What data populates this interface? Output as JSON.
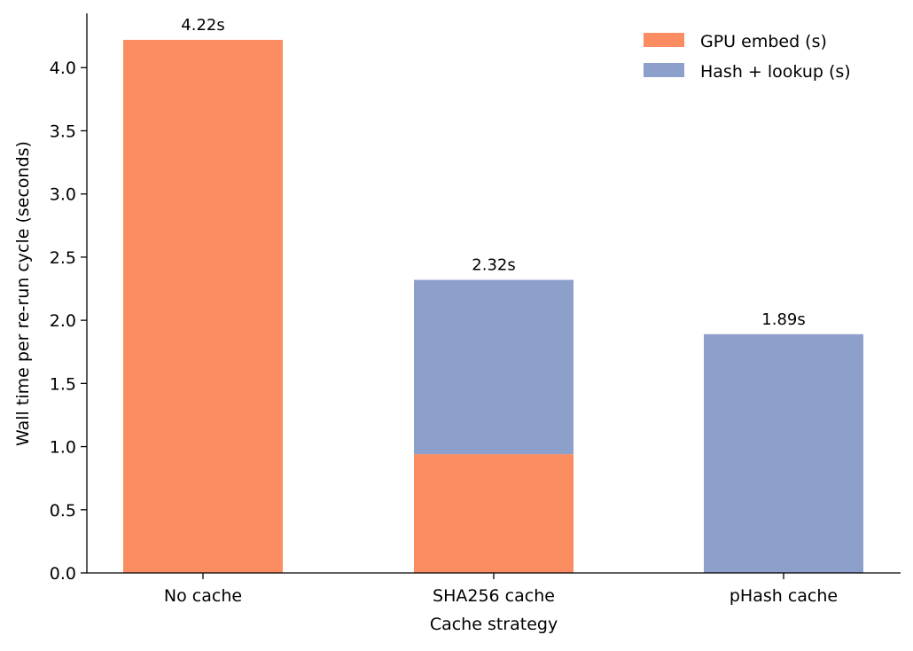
{
  "chart_data": {
    "type": "bar",
    "stacked": true,
    "title": "",
    "xlabel": "Cache strategy",
    "ylabel": "Wall time per re-run cycle (seconds)",
    "categories": [
      "No cache",
      "SHA256 cache",
      "pHash cache"
    ],
    "series": [
      {
        "name": "GPU embed (s)",
        "color": "#fc8d62",
        "values": [
          4.22,
          0.94,
          0.0
        ]
      },
      {
        "name": "Hash + lookup (s)",
        "color": "#8da0cb",
        "values": [
          0.0,
          1.38,
          1.89
        ]
      }
    ],
    "totals_labels": [
      "4.22s",
      "2.32s",
      "1.89s"
    ],
    "ylim": [
      0,
      4.43
    ],
    "yticks": [
      0.0,
      0.5,
      1.0,
      1.5,
      2.0,
      2.5,
      3.0,
      3.5,
      4.0
    ],
    "ytick_labels": [
      "0.0",
      "0.5",
      "1.0",
      "1.5",
      "2.0",
      "2.5",
      "3.0",
      "3.5",
      "4.0"
    ],
    "grid": false,
    "legend_position": "top-right"
  }
}
